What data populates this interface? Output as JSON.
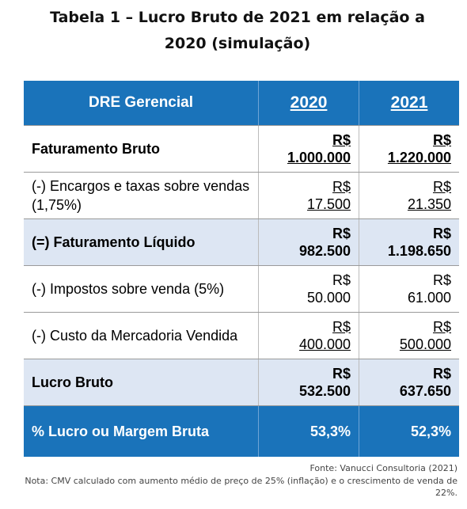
{
  "title": "Tabela 1 – Lucro Bruto de 2021 em relação a 2020 (simulação)",
  "table": {
    "header": [
      "DRE Gerencial",
      "2020",
      "2021"
    ],
    "rows": [
      [
        "Faturamento Bruto",
        "R$\n1.000.000",
        "R$\n1.220.000"
      ],
      [
        "(-) Encargos e taxas sobre vendas (1,75%)",
        "R$\n17.500",
        "R$\n21.350"
      ],
      [
        "(=) Faturamento Líquido",
        "R$\n982.500",
        "R$\n1.198.650"
      ],
      [
        "(-) Impostos sobre venda (5%)",
        "R$\n50.000",
        "R$\n61.000"
      ],
      [
        "(-) Custo da Mercadoria Vendida",
        "R$\n400.000",
        "R$\n500.000"
      ],
      [
        "Lucro Bruto",
        "R$\n532.500",
        "R$\n637.650"
      ],
      [
        "% Lucro ou Margem Bruta",
        "53,3%",
        "52,3%"
      ]
    ]
  },
  "source": "Fonte: Vanucci Consultoria (2021)",
  "note": "Nota: CMV calculado com aumento médio de preço de 25% (inflação) e o crescimento de venda de 22%."
}
